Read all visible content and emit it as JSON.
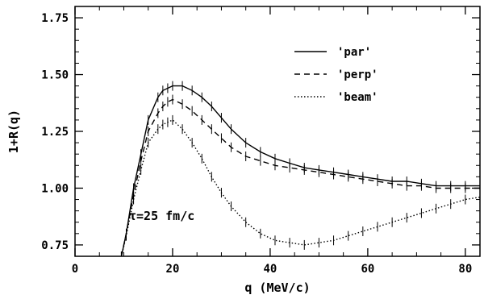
{
  "chart_data": {
    "type": "line",
    "xlabel": "q (MeV/c)",
    "ylabel": "1+R(q)",
    "xlim": [
      0,
      83
    ],
    "ylim": [
      0.7,
      1.8
    ],
    "x_ticks": [
      "0",
      "20",
      "40",
      "60",
      "80"
    ],
    "y_ticks": [
      "0.75",
      "1.00",
      "1.25",
      "1.50",
      "1.75"
    ],
    "annotation": "τ=25 fm/c",
    "series": [
      {
        "name": "'par'",
        "style": "solid",
        "x": [
          9.5,
          10.5,
          12,
          13.5,
          15,
          17,
          18,
          19,
          20,
          22,
          24,
          26,
          28,
          30,
          32,
          35,
          38,
          41,
          44,
          47,
          50,
          53,
          56,
          59,
          62,
          65,
          68,
          71,
          74,
          77,
          80,
          83
        ],
        "y": [
          0.7,
          0.8,
          1.0,
          1.15,
          1.3,
          1.4,
          1.43,
          1.44,
          1.45,
          1.45,
          1.43,
          1.4,
          1.36,
          1.31,
          1.26,
          1.2,
          1.16,
          1.13,
          1.11,
          1.09,
          1.08,
          1.07,
          1.06,
          1.05,
          1.04,
          1.03,
          1.03,
          1.02,
          1.01,
          1.01,
          1.01,
          1.01
        ]
      },
      {
        "name": "'perp'",
        "style": "dashed",
        "x": [
          9.5,
          10.5,
          12,
          13.5,
          15,
          17,
          18,
          19,
          20,
          22,
          24,
          26,
          28,
          30,
          32,
          35,
          38,
          41,
          44,
          47,
          50,
          53,
          56,
          59,
          62,
          65,
          68,
          71,
          74,
          77,
          80,
          83
        ],
        "y": [
          0.7,
          0.8,
          0.97,
          1.12,
          1.25,
          1.33,
          1.36,
          1.38,
          1.39,
          1.37,
          1.34,
          1.3,
          1.26,
          1.22,
          1.18,
          1.14,
          1.12,
          1.1,
          1.09,
          1.08,
          1.07,
          1.06,
          1.05,
          1.04,
          1.03,
          1.02,
          1.01,
          1.01,
          1.0,
          1.0,
          1.0,
          1.0
        ]
      },
      {
        "name": "'beam'",
        "style": "dotted",
        "x": [
          9.5,
          10.5,
          12,
          13.5,
          15,
          17,
          18,
          19,
          20,
          22,
          24,
          26,
          28,
          30,
          32,
          35,
          38,
          41,
          44,
          47,
          50,
          53,
          56,
          59,
          62,
          65,
          68,
          71,
          74,
          77,
          80,
          83
        ],
        "y": [
          0.7,
          0.79,
          0.95,
          1.08,
          1.2,
          1.26,
          1.28,
          1.29,
          1.3,
          1.26,
          1.2,
          1.13,
          1.05,
          0.98,
          0.92,
          0.85,
          0.8,
          0.77,
          0.76,
          0.75,
          0.76,
          0.77,
          0.79,
          0.81,
          0.83,
          0.85,
          0.87,
          0.89,
          0.91,
          0.93,
          0.95,
          0.96
        ]
      }
    ],
    "legend": {
      "position": "top-right",
      "entries": [
        "'par'",
        "'perp'",
        "'beam'"
      ]
    },
    "grid": false
  }
}
